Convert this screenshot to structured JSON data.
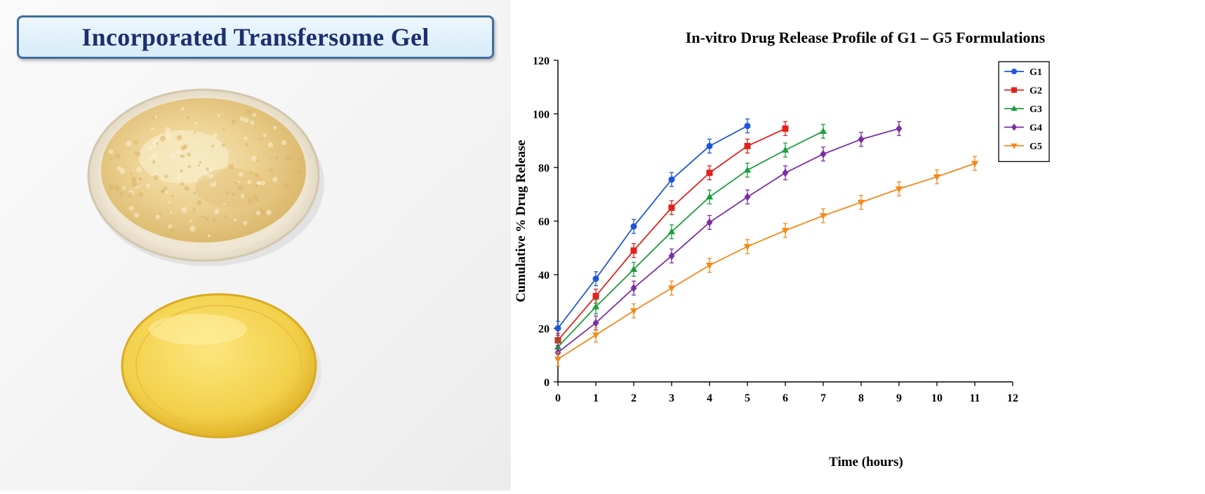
{
  "photo_panel": {
    "label": "Incorporated Transfersome Gel",
    "colors": {
      "gel": "#ecd191",
      "lid": "#f3d049",
      "frame": "#3d6f9c",
      "text": "#1c2f70"
    }
  },
  "chart_data": {
    "type": "line",
    "title": "In-vitro Drug Release Profile of G1 – G5 Formulations",
    "xlabel": "Time (hours)",
    "ylabel": "Cumulative % Drug Release",
    "xlim": [
      0,
      12
    ],
    "ylim": [
      0,
      120
    ],
    "xticks": [
      "0",
      "1",
      "2",
      "3",
      "4",
      "5",
      "6",
      "7",
      "8",
      "9",
      "10",
      "11",
      "12"
    ],
    "yticks": [
      "0",
      "20",
      "40",
      "60",
      "80",
      "100",
      "120"
    ],
    "grid": false,
    "legend_position": "top-right",
    "error_bars": true,
    "series": [
      {
        "name": "G1",
        "color": "#1f56d6",
        "marker": "circle",
        "x": [
          0,
          1,
          2,
          3,
          4,
          5
        ],
        "values": [
          20,
          38.5,
          58,
          75.5,
          88,
          95.5
        ]
      },
      {
        "name": "G2",
        "color": "#e3211c",
        "marker": "square",
        "x": [
          0,
          1,
          2,
          3,
          4,
          5,
          6
        ],
        "values": [
          15.5,
          32,
          49,
          65,
          78,
          88,
          94.5
        ]
      },
      {
        "name": "G3",
        "color": "#1e9e3e",
        "marker": "triangle-up",
        "x": [
          0,
          1,
          2,
          3,
          4,
          5,
          6,
          7
        ],
        "values": [
          13,
          28,
          42,
          56,
          69,
          79,
          86.5,
          93.5
        ]
      },
      {
        "name": "G4",
        "color": "#7b2fa2",
        "marker": "diamond",
        "x": [
          0,
          1,
          2,
          3,
          4,
          5,
          6,
          7,
          8,
          9
        ],
        "values": [
          11,
          22,
          35,
          47,
          59.5,
          69,
          78,
          85,
          90.5,
          94.5
        ]
      },
      {
        "name": "G5",
        "color": "#f28a1c",
        "marker": "triangle-down",
        "x": [
          0,
          1,
          2,
          3,
          4,
          5,
          6,
          7,
          8,
          9,
          10,
          11
        ],
        "values": [
          8.5,
          17.5,
          26.5,
          35,
          43.5,
          50.5,
          56.5,
          62,
          67,
          72,
          76.5,
          81.5
        ]
      }
    ]
  }
}
